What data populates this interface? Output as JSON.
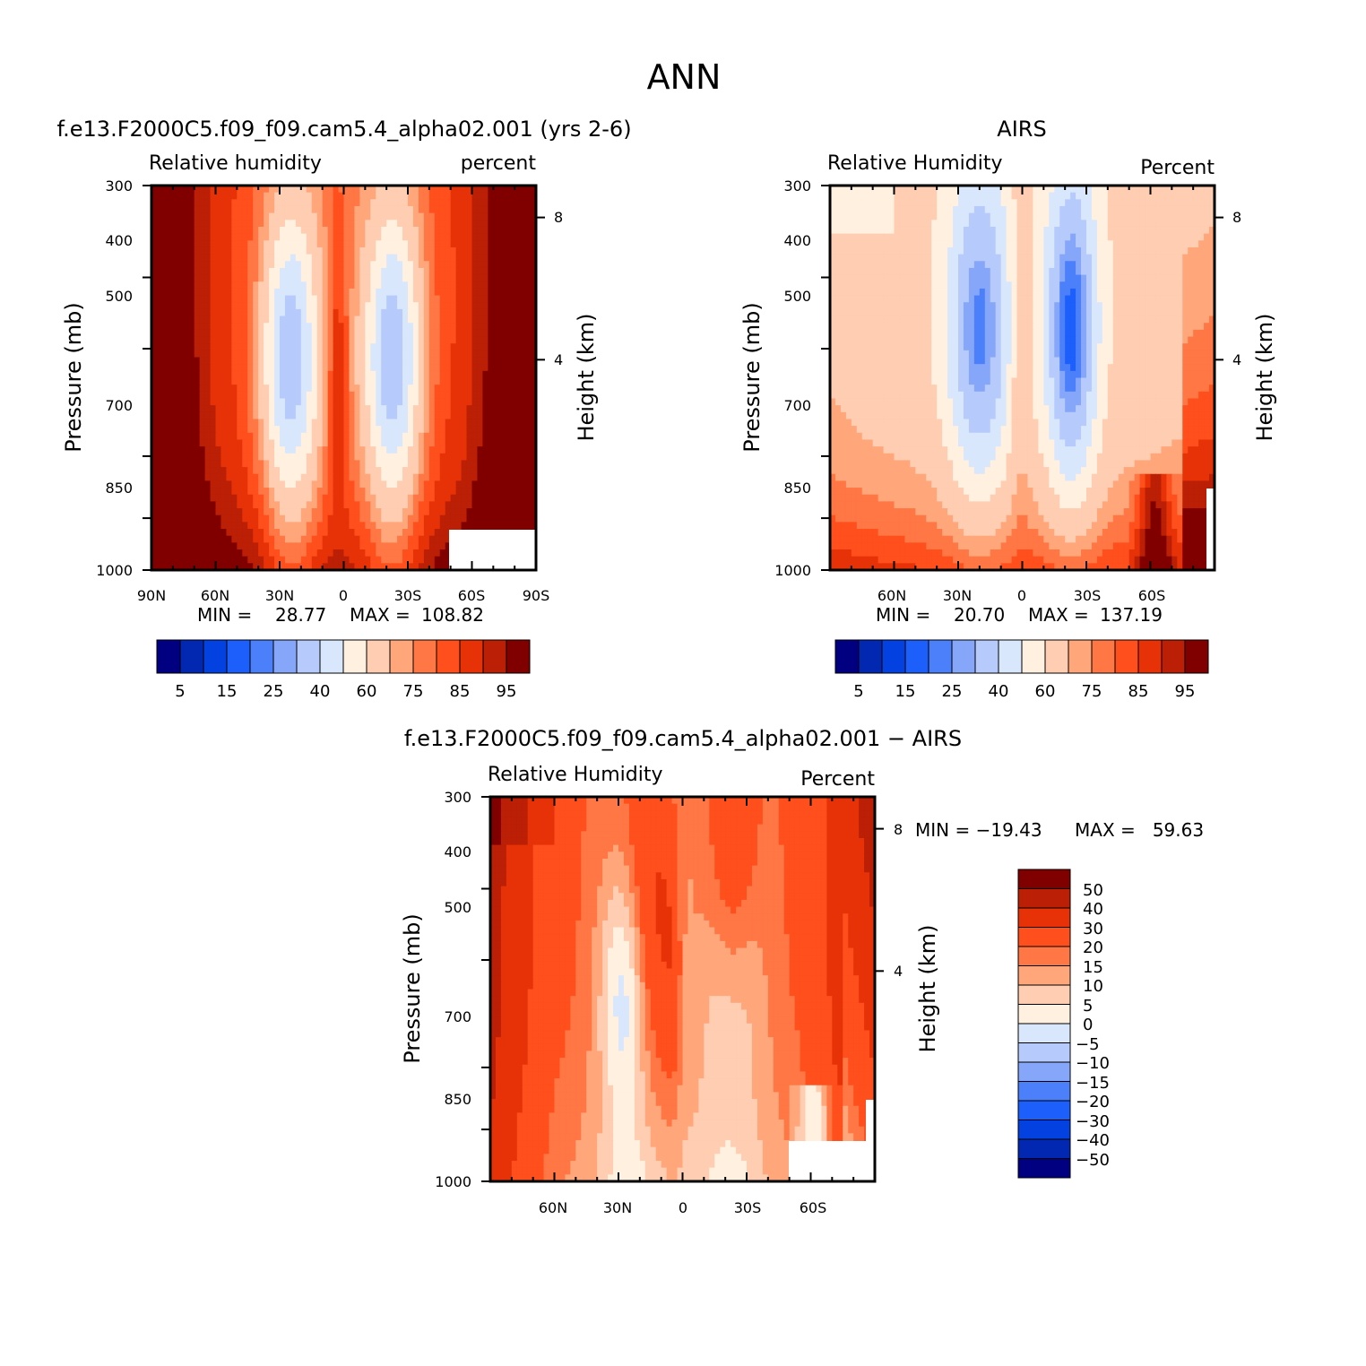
{
  "figure": {
    "title": "ANN"
  },
  "colors": {
    "full": [
      "#000080",
      "#0228b1",
      "#0441e1",
      "#1c5ffb",
      "#4b80fa",
      "#86a7f9",
      "#b6cbfb",
      "#d9e7fd",
      "#fff0df",
      "#ffcdb2",
      "#ffa67a",
      "#ff7744",
      "#ff4f1c",
      "#e73208",
      "#bb1f05",
      "#800000"
    ],
    "diverging": [
      "#000080",
      "#0228b1",
      "#0441e1",
      "#1c5ffb",
      "#4b80fa",
      "#86a7f9",
      "#b6cbfb",
      "#d9e7fd",
      "#fff0df",
      "#ffcdb2",
      "#ffa67a",
      "#ff7744",
      "#ff4f1c",
      "#e73208",
      "#bb1f05",
      "#800000"
    ]
  },
  "chart_data": [
    {
      "type": "contour",
      "id": "model",
      "title": "f.e13.F2000C5.f09_f09.cam5.4_alpha02.001 (yrs 2-6)",
      "left_label": "Relative humidity",
      "right_label": "percent",
      "ylabel": "Pressure (mb)",
      "y2label": "Height (km)",
      "y_ticks": [
        "300",
        "400",
        "500",
        "700",
        "850",
        "1000"
      ],
      "y2_ticks": [
        "8",
        "4"
      ],
      "x_ticks": [
        "90N",
        "60N",
        "30N",
        "0",
        "30S",
        "60S",
        "90S"
      ],
      "min_label": "MIN =",
      "min_value": "28.77",
      "max_label": "MAX =",
      "max_value": "108.82",
      "colorbar_labels": [
        "5",
        "15",
        "25",
        "40",
        "60",
        "75",
        "85",
        "95"
      ],
      "xlim": [
        90,
        -90
      ],
      "ylim": [
        1000,
        300
      ],
      "field_min": 28.77,
      "field_max": 108.82
    },
    {
      "type": "contour",
      "id": "obs",
      "title": "AIRS",
      "left_label": "Relative Humidity",
      "right_label": "Percent",
      "ylabel": "Pressure (mb)",
      "y2label": "Height (km)",
      "y_ticks": [
        "300",
        "400",
        "500",
        "700",
        "850",
        "1000"
      ],
      "y2_ticks": [
        "8",
        "4"
      ],
      "x_ticks": [
        "60N",
        "30N",
        "0",
        "30S",
        "60S"
      ],
      "min_label": "MIN =",
      "min_value": "20.70",
      "max_label": "MAX =",
      "max_value": "137.19",
      "colorbar_labels": [
        "5",
        "15",
        "25",
        "40",
        "60",
        "75",
        "85",
        "95"
      ],
      "xlim": [
        90,
        -90
      ],
      "ylim": [
        1000,
        300
      ],
      "field_min": 20.7,
      "field_max": 137.19
    },
    {
      "type": "contour",
      "id": "diff",
      "title": "f.e13.F2000C5.f09_f09.cam5.4_alpha02.001 − AIRS",
      "left_label": "Relative Humidity",
      "right_label": "Percent",
      "ylabel": "Pressure (mb)",
      "y2label": "Height (km)",
      "y_ticks": [
        "300",
        "400",
        "500",
        "700",
        "850",
        "1000"
      ],
      "y2_ticks": [
        "8",
        "4"
      ],
      "x_ticks": [
        "60N",
        "30N",
        "0",
        "30S",
        "60S"
      ],
      "min_label": "MIN = −19.43",
      "max_label": "MAX =   59.63",
      "colorbar_labels": [
        "50",
        "40",
        "30",
        "20",
        "15",
        "10",
        "5",
        "0",
        "−5",
        "−10",
        "−15",
        "−20",
        "−30",
        "−40",
        "−50"
      ],
      "xlim": [
        90,
        -90
      ],
      "ylim": [
        1000,
        300
      ],
      "field_min": -19.43,
      "field_max": 59.63
    }
  ]
}
